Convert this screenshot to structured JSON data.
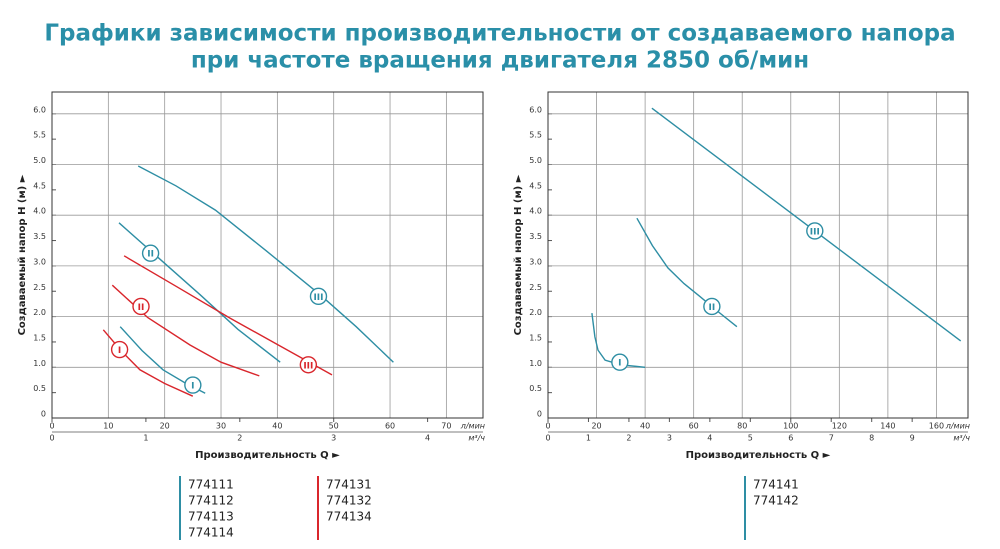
{
  "title": [
    "Графики зависимости производительности от создаваемого напора",
    "при частоте вращения двигателя 2850 об/мин"
  ],
  "chart_data": [
    {
      "type": "line",
      "ylabel": "Создаваемый напор H (м) ►",
      "xlabel": "Производительность Q ►",
      "x_unit": "л/мин",
      "x2_unit": "м³/ч",
      "xlim": [
        0,
        76.5
      ],
      "xticks": [
        0,
        10,
        20,
        30,
        40,
        50,
        60,
        70
      ],
      "x2lim": [
        0,
        4.59
      ],
      "x2ticks": [
        0,
        1,
        2,
        3,
        4
      ],
      "ylim": [
        0,
        6.43
      ],
      "yticks": [
        0,
        0.5,
        {
          "value": 1,
          "label": "1.0"
        },
        1.5,
        {
          "value": 2,
          "label": "2.0"
        },
        2.5,
        {
          "value": 3,
          "label": "3.0"
        },
        3.5,
        {
          "value": 4,
          "label": "4.0"
        },
        4.5,
        {
          "value": 5,
          "label": "5.0"
        },
        5.5,
        {
          "value": 6,
          "label": "6.0"
        }
      ],
      "grid": true,
      "series": [
        {
          "color": "#2e8ea4",
          "x": [
            12.1,
            16,
            19.7,
            23.5,
            27.2
          ],
          "values": [
            1.8,
            1.33,
            0.95,
            0.7,
            0.49
          ]
        },
        {
          "color": "#d9262c",
          "x": [
            9.1,
            12.5,
            15.6,
            20,
            25
          ],
          "values": [
            1.74,
            1.3,
            0.95,
            0.68,
            0.43
          ]
        },
        {
          "color": "#2e8ea4",
          "x": [
            11.9,
            19,
            26.3,
            33,
            40.5
          ],
          "values": [
            3.85,
            3.15,
            2.43,
            1.75,
            1.1
          ]
        },
        {
          "color": "#d9262c",
          "x": [
            10.7,
            17,
            24.5,
            30,
            36.8
          ],
          "values": [
            2.62,
            1.98,
            1.44,
            1.1,
            0.83
          ]
        },
        {
          "color": "#2e8ea4",
          "x": [
            15.3,
            22,
            29,
            38,
            47.6,
            54,
            60.6
          ],
          "values": [
            4.97,
            4.58,
            4.1,
            3.3,
            2.43,
            1.8,
            1.1
          ]
        },
        {
          "color": "#d9262c",
          "x": [
            12.8,
            22,
            31.6,
            40,
            49.7
          ],
          "values": [
            3.2,
            2.6,
            1.97,
            1.45,
            0.85
          ]
        }
      ],
      "annotations": [
        {
          "text": "I",
          "x": 25,
          "y": 0.65,
          "color": "#2e8ea4"
        },
        {
          "text": "I",
          "x": 12,
          "y": 1.35,
          "color": "#d9262c"
        },
        {
          "text": "II",
          "x": 17.5,
          "y": 3.25,
          "color": "#2e8ea4"
        },
        {
          "text": "II",
          "x": 15.8,
          "y": 2.2,
          "color": "#d9262c"
        },
        {
          "text": "III",
          "x": 47.3,
          "y": 2.4,
          "color": "#2e8ea4"
        },
        {
          "text": "III",
          "x": 45.5,
          "y": 1.05,
          "color": "#d9262c"
        }
      ],
      "legend_groups": [
        {
          "color": "#2e8ea4",
          "items": [
            "774111",
            "774112",
            "774113",
            "774114"
          ]
        },
        {
          "color": "#d9262c",
          "items": [
            "774131",
            "774132",
            "774134"
          ]
        }
      ]
    },
    {
      "type": "line",
      "ylabel": "Создаваемый напор H (м) ►",
      "xlabel": "Производительность Q ►",
      "x_unit": "л/мин",
      "x2_unit": "м³/ч",
      "xlim": [
        0,
        173
      ],
      "xticks": [
        0,
        20,
        40,
        60,
        80,
        100,
        120,
        140,
        160
      ],
      "x2lim": [
        0,
        10.38
      ],
      "x2ticks": [
        0,
        1,
        2,
        3,
        4,
        5,
        6,
        7,
        8,
        9
      ],
      "ylim": [
        0,
        6.43
      ],
      "yticks": [
        0,
        0.5,
        {
          "value": 1,
          "label": "1.0"
        },
        1.5,
        {
          "value": 2,
          "label": "2.0"
        },
        2.5,
        {
          "value": 3,
          "label": "3.0"
        },
        3.5,
        {
          "value": 4,
          "label": "4.0"
        },
        4.5,
        {
          "value": 5,
          "label": "5.0"
        },
        5.5,
        {
          "value": 6,
          "label": "6.0"
        }
      ],
      "grid": true,
      "series": [
        {
          "color": "#2e8ea4",
          "x": [
            18.1,
            19.3,
            20.6,
            23.5,
            30,
            40
          ],
          "values": [
            2.07,
            1.6,
            1.34,
            1.14,
            1.05,
            1.0
          ]
        },
        {
          "color": "#2e8ea4",
          "x": [
            36.6,
            43,
            49.4,
            56,
            62.5,
            70,
            77.8
          ],
          "values": [
            3.94,
            3.4,
            2.96,
            2.65,
            2.4,
            2.1,
            1.8
          ]
        },
        {
          "color": "#2e8ea4",
          "x": [
            42.8,
            170
          ],
          "values": [
            6.11,
            1.52
          ]
        }
      ],
      "annotations": [
        {
          "text": "I",
          "x": 29.6,
          "y": 1.1,
          "color": "#2e8ea4"
        },
        {
          "text": "II",
          "x": 67.5,
          "y": 2.2,
          "color": "#2e8ea4"
        },
        {
          "text": "III",
          "x": 109.9,
          "y": 3.69,
          "color": "#2e8ea4"
        }
      ],
      "legend_groups": [
        {
          "color": "#2e8ea4",
          "items": [
            "774141",
            "774142"
          ]
        }
      ]
    }
  ]
}
